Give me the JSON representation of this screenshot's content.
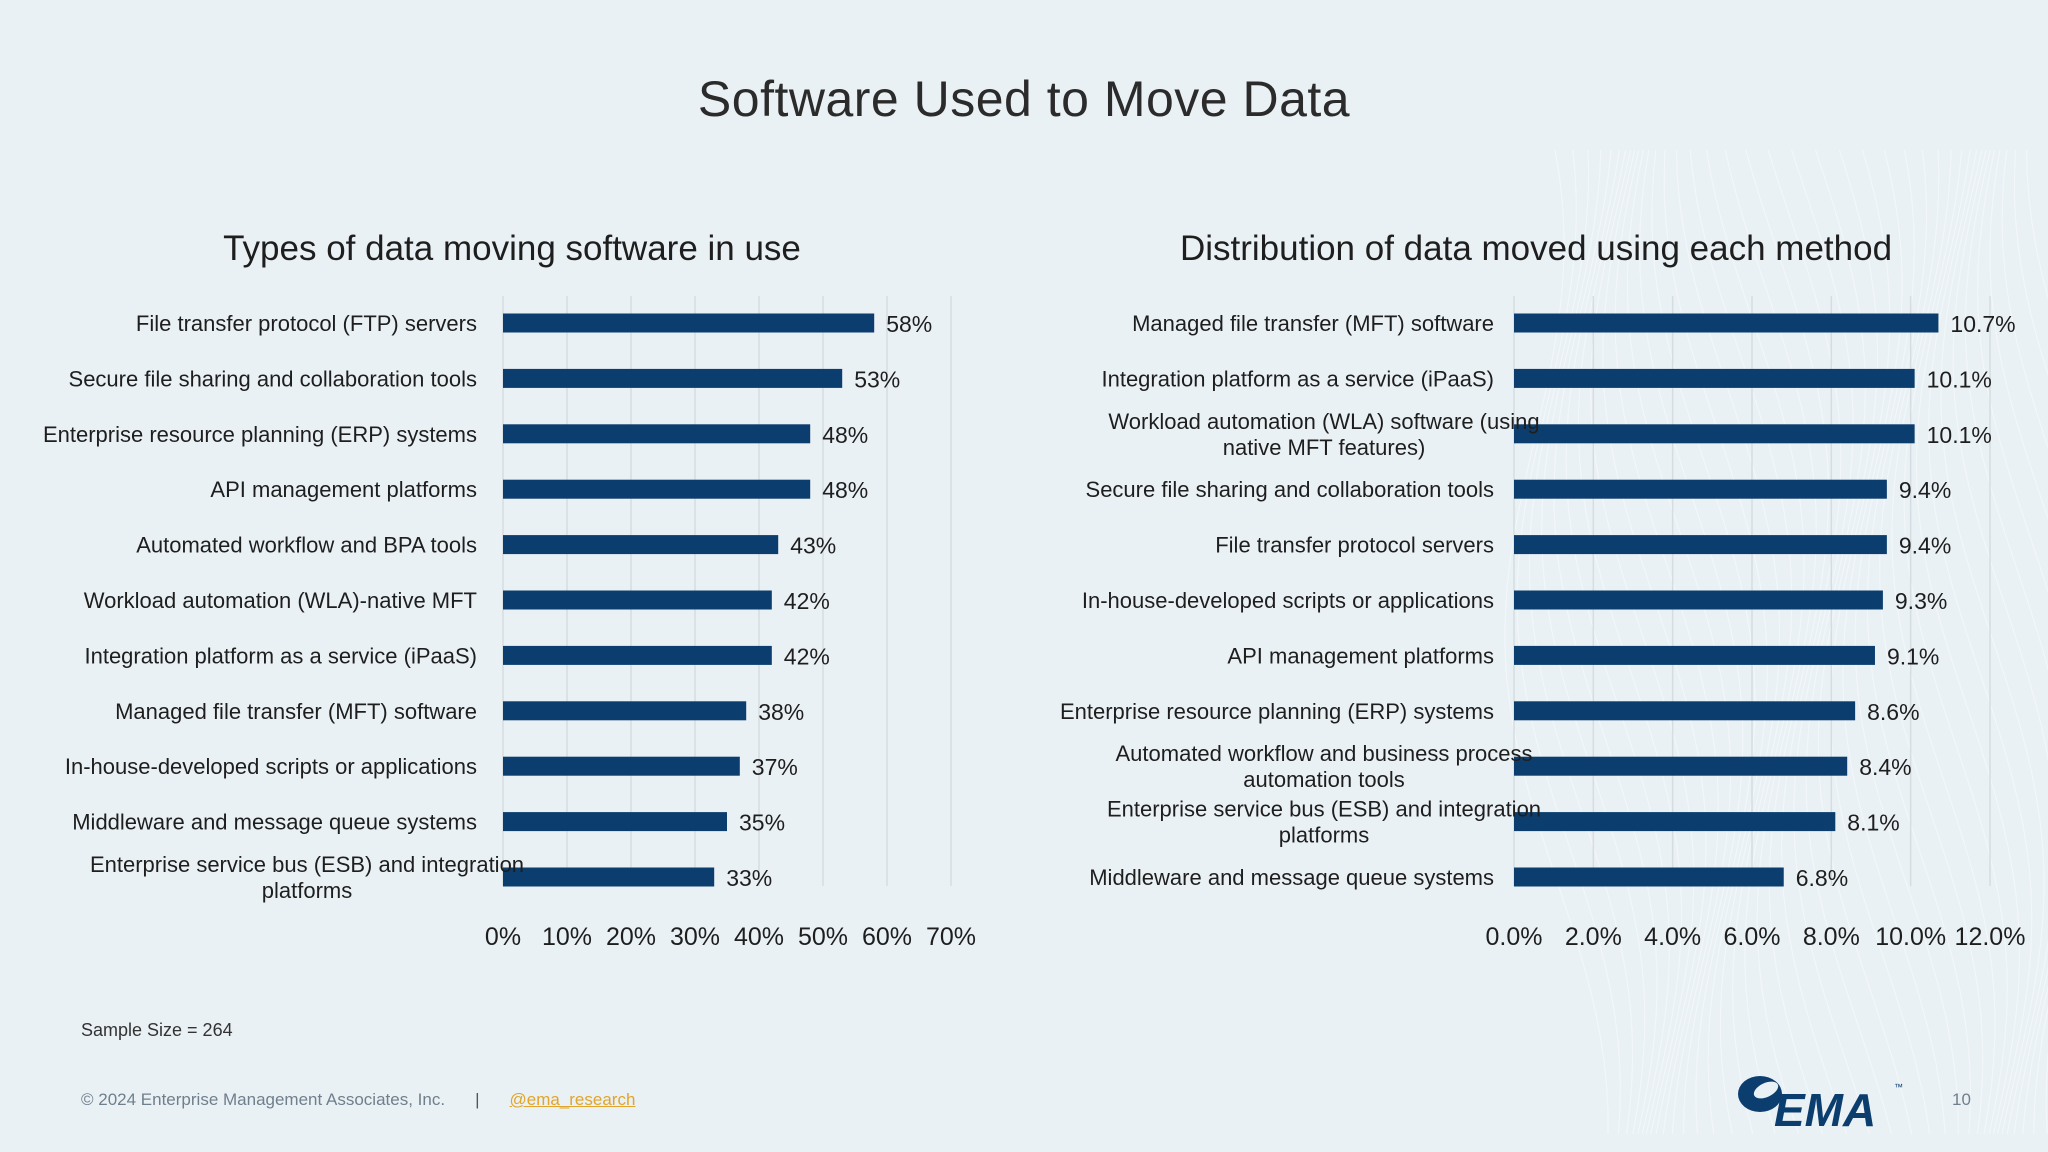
{
  "page": {
    "title": "Software Used to Move Data",
    "sample_size": "Sample Size = 264",
    "footer_copyright": "© 2024 Enterprise Management Associates, Inc.",
    "footer_separator": "|",
    "footer_link": "@ema_research",
    "page_number": "10",
    "logo_text": "EMA",
    "logo_tm": "™"
  },
  "colors": {
    "bar": "#0b3d6e",
    "grid": "#d6dde2",
    "background": "#eaf1f5",
    "link": "#e0a52c"
  },
  "chart_data": [
    {
      "type": "bar",
      "orientation": "horizontal",
      "title": "Types of data moving software in use",
      "categories": [
        "File transfer protocol (FTP) servers",
        "Secure file sharing and collaboration tools",
        "Enterprise resource planning (ERP) systems",
        "API management platforms",
        "Automated workflow and BPA tools",
        "Workload automation (WLA)-native MFT",
        "Integration platform as a service (iPaaS)",
        "Managed file transfer (MFT) software",
        "In-house-developed scripts or applications",
        "Middleware and message queue systems",
        "Enterprise service bus (ESB) and integration platforms"
      ],
      "category_lines": [
        [
          "File transfer protocol (FTP) servers"
        ],
        [
          "Secure file sharing and collaboration tools"
        ],
        [
          "Enterprise resource planning (ERP) systems"
        ],
        [
          "API management platforms"
        ],
        [
          "Automated workflow and BPA tools"
        ],
        [
          "Workload automation (WLA)-native MFT"
        ],
        [
          "Integration platform as a service (iPaaS)"
        ],
        [
          "Managed file transfer (MFT) software"
        ],
        [
          "In-house-developed scripts or applications"
        ],
        [
          "Middleware and message queue systems"
        ],
        [
          "Enterprise service bus (ESB) and integration",
          "platforms"
        ]
      ],
      "values": [
        58,
        53,
        48,
        48,
        43,
        42,
        42,
        38,
        37,
        35,
        33
      ],
      "value_labels": [
        "58%",
        "53%",
        "48%",
        "48%",
        "43%",
        "42%",
        "42%",
        "38%",
        "37%",
        "35%",
        "33%"
      ],
      "xlim": [
        0,
        70
      ],
      "ticks": [
        0,
        10,
        20,
        30,
        40,
        50,
        60,
        70
      ],
      "tick_labels": [
        "0%",
        "10%",
        "20%",
        "30%",
        "40%",
        "50%",
        "60%",
        "70%"
      ],
      "grid": true,
      "legend": "none"
    },
    {
      "type": "bar",
      "orientation": "horizontal",
      "title": "Distribution of data moved using each method",
      "categories": [
        "Managed file transfer (MFT) software",
        "Integration platform as a service (iPaaS)",
        "Workload automation (WLA) software (using native MFT features)",
        "Secure file sharing and collaboration tools",
        "File transfer protocol servers",
        "In-house-developed scripts or applications",
        "API management platforms",
        "Enterprise resource planning (ERP) systems",
        "Automated workflow and business process automation tools",
        "Enterprise service bus (ESB) and integration platforms",
        "Middleware and message queue systems"
      ],
      "category_lines": [
        [
          "Managed file transfer (MFT) software"
        ],
        [
          "Integration platform as a service (iPaaS)"
        ],
        [
          "Workload automation (WLA) software (using",
          "native MFT features)"
        ],
        [
          "Secure file sharing and collaboration tools"
        ],
        [
          "File transfer protocol servers"
        ],
        [
          "In-house-developed scripts or applications"
        ],
        [
          "API management platforms"
        ],
        [
          "Enterprise resource planning (ERP) systems"
        ],
        [
          "Automated workflow and business process",
          "automation tools"
        ],
        [
          "Enterprise service bus (ESB) and integration",
          "platforms"
        ],
        [
          "Middleware and message queue systems"
        ]
      ],
      "values": [
        10.7,
        10.1,
        10.1,
        9.4,
        9.4,
        9.3,
        9.1,
        8.6,
        8.4,
        8.1,
        6.8
      ],
      "value_labels": [
        "10.7%",
        "10.1%",
        "10.1%",
        "9.4%",
        "9.4%",
        "9.3%",
        "9.1%",
        "8.6%",
        "8.4%",
        "8.1%",
        "6.8%"
      ],
      "xlim": [
        0,
        12
      ],
      "ticks": [
        0,
        2,
        4,
        6,
        8,
        10,
        12
      ],
      "tick_labels": [
        "0.0%",
        "2.0%",
        "4.0%",
        "6.0%",
        "8.0%",
        "10.0%",
        "12.0%"
      ],
      "grid": true,
      "legend": "none"
    }
  ]
}
